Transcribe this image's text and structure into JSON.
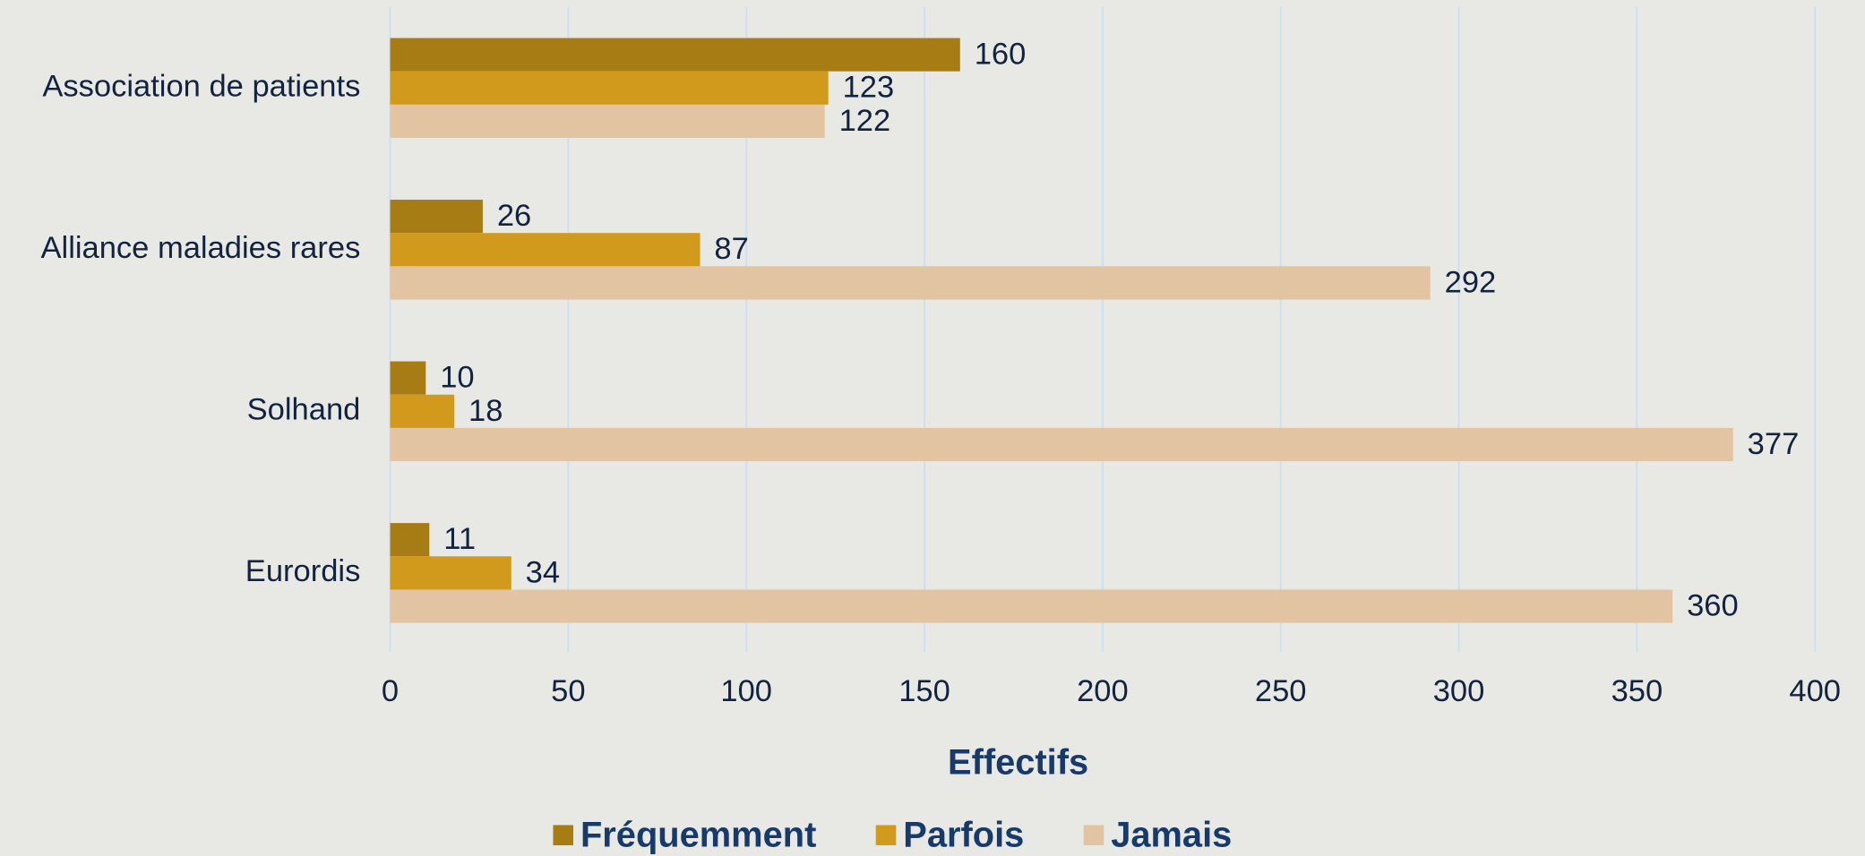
{
  "chart_data": {
    "type": "hbar",
    "categories": [
      "Association de patients",
      "Alliance maladies rares",
      "Solhand",
      "Eurordis"
    ],
    "series": [
      {
        "name": "Fréquemment",
        "color": "#a87c15",
        "values": [
          160,
          26,
          10,
          11
        ]
      },
      {
        "name": "Parfois",
        "color": "#d19a1c",
        "values": [
          123,
          87,
          18,
          34
        ]
      },
      {
        "name": "Jamais",
        "color": "#e2c4a3",
        "values": [
          122,
          292,
          377,
          360
        ]
      }
    ],
    "xlabel": "Effectifs",
    "xlim": [
      0,
      400
    ],
    "xticks": [
      0,
      50,
      100,
      150,
      200,
      250,
      300,
      350,
      400
    ],
    "grid": true,
    "legend": "bottom"
  }
}
